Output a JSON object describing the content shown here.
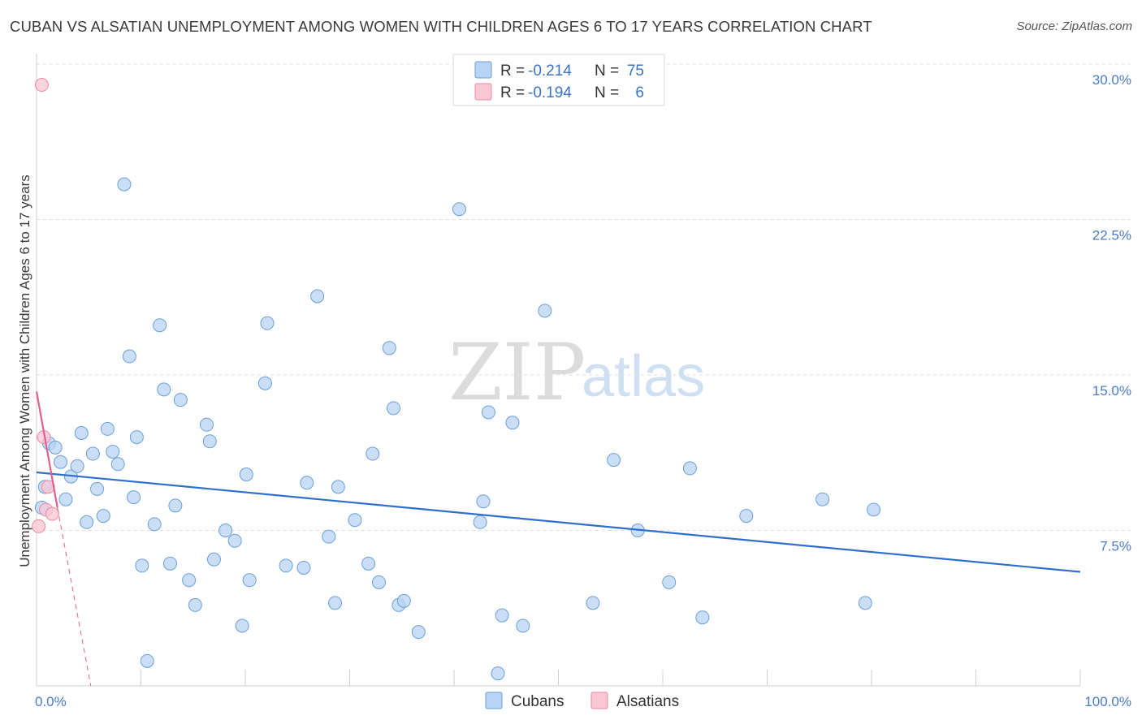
{
  "title": "CUBAN VS ALSATIAN UNEMPLOYMENT AMONG WOMEN WITH CHILDREN AGES 6 TO 17 YEARS CORRELATION CHART",
  "source": "Source: ZipAtlas.com",
  "watermark": {
    "zip": "ZIP",
    "atlas": "atlas"
  },
  "colors": {
    "cubans_fill": "#b8d3f3",
    "cubans_stroke": "#6b9fd8",
    "cubans_line": "#2e6fcc",
    "alsatians_fill": "#f9c6d4",
    "alsatians_stroke": "#e88aa6",
    "alsatians_line": "#e0608c",
    "tick_text": "#4a7cc4",
    "grid": "#dddddd"
  },
  "legend": {
    "rows": [
      {
        "r_label": "R =",
        "r_value": "-0.214",
        "n_label": "N =",
        "n_value": "75"
      },
      {
        "r_label": "R =",
        "r_value": "-0.194",
        "n_label": "N =",
        "n_value": "6"
      }
    ]
  },
  "bottom_legend": [
    "Cubans",
    "Alsatians"
  ],
  "chart_data": {
    "type": "scatter",
    "title": "CUBAN VS ALSATIAN UNEMPLOYMENT AMONG WOMEN WITH CHILDREN AGES 6 TO 17 YEARS CORRELATION CHART",
    "xlabel": "",
    "ylabel": "Unemployment Among Women with Children Ages 6 to 17 years",
    "xlim": [
      0,
      100
    ],
    "ylim": [
      0,
      30
    ],
    "y_ticks": [
      7.5,
      15.0,
      22.5,
      30.0
    ],
    "y_tick_labels": [
      "7.5%",
      "15.0%",
      "22.5%",
      "30.0%"
    ],
    "x_tick_labels": [
      "0.0%",
      "100.0%"
    ],
    "grid": "horizontal dashed",
    "legend_position": "top-center",
    "series": [
      {
        "name": "Cubans",
        "r": -0.214,
        "n": 75,
        "trend": {
          "x": [
            0,
            100
          ],
          "y": [
            10.3,
            5.5
          ]
        },
        "points": [
          [
            0.5,
            8.6
          ],
          [
            0.8,
            9.6
          ],
          [
            1.2,
            11.7
          ],
          [
            1.8,
            11.5
          ],
          [
            2.3,
            10.8
          ],
          [
            2.8,
            9.0
          ],
          [
            3.3,
            10.1
          ],
          [
            3.9,
            10.6
          ],
          [
            4.3,
            12.2
          ],
          [
            4.8,
            7.9
          ],
          [
            5.4,
            11.2
          ],
          [
            5.8,
            9.5
          ],
          [
            6.4,
            8.2
          ],
          [
            6.8,
            12.4
          ],
          [
            7.3,
            11.3
          ],
          [
            7.8,
            10.7
          ],
          [
            8.4,
            24.2
          ],
          [
            8.9,
            15.9
          ],
          [
            9.3,
            9.1
          ],
          [
            9.6,
            12.0
          ],
          [
            10.1,
            5.8
          ],
          [
            10.6,
            1.2
          ],
          [
            11.3,
            7.8
          ],
          [
            11.8,
            17.4
          ],
          [
            12.2,
            14.3
          ],
          [
            12.8,
            5.9
          ],
          [
            13.3,
            8.7
          ],
          [
            13.8,
            13.8
          ],
          [
            14.6,
            5.1
          ],
          [
            15.2,
            3.9
          ],
          [
            16.3,
            12.6
          ],
          [
            16.6,
            11.8
          ],
          [
            17.0,
            6.1
          ],
          [
            18.1,
            7.5
          ],
          [
            19.0,
            7.0
          ],
          [
            19.7,
            2.9
          ],
          [
            20.1,
            10.2
          ],
          [
            20.4,
            5.1
          ],
          [
            21.9,
            14.6
          ],
          [
            22.1,
            17.5
          ],
          [
            23.9,
            5.8
          ],
          [
            25.6,
            5.7
          ],
          [
            25.9,
            9.8
          ],
          [
            26.9,
            18.8
          ],
          [
            28.0,
            7.2
          ],
          [
            28.6,
            4.0
          ],
          [
            28.9,
            9.6
          ],
          [
            30.5,
            8.0
          ],
          [
            31.8,
            5.9
          ],
          [
            32.2,
            11.2
          ],
          [
            32.8,
            5.0
          ],
          [
            33.8,
            16.3
          ],
          [
            34.2,
            13.4
          ],
          [
            34.7,
            3.9
          ],
          [
            35.2,
            4.1
          ],
          [
            36.6,
            2.6
          ],
          [
            40.5,
            23.0
          ],
          [
            42.5,
            7.9
          ],
          [
            42.8,
            8.9
          ],
          [
            43.3,
            13.2
          ],
          [
            44.2,
            0.6
          ],
          [
            44.6,
            3.4
          ],
          [
            45.6,
            12.7
          ],
          [
            46.6,
            2.9
          ],
          [
            48.7,
            18.1
          ],
          [
            53.3,
            4.0
          ],
          [
            55.3,
            10.9
          ],
          [
            57.6,
            7.5
          ],
          [
            60.6,
            5.0
          ],
          [
            62.6,
            10.5
          ],
          [
            63.8,
            3.3
          ],
          [
            68.0,
            8.2
          ],
          [
            75.3,
            9.0
          ],
          [
            79.4,
            4.0
          ],
          [
            80.2,
            8.5
          ]
        ]
      },
      {
        "name": "Alsatians",
        "r": -0.194,
        "n": 6,
        "trend_solid": {
          "x": [
            0,
            2.0
          ],
          "y": [
            14.2,
            8.6
          ]
        },
        "trend_dashed": {
          "x": [
            2.0,
            5.2
          ],
          "y": [
            8.6,
            0
          ]
        },
        "points": [
          [
            0.5,
            29.0
          ],
          [
            0.7,
            12.0
          ],
          [
            0.9,
            8.5
          ],
          [
            1.1,
            9.6
          ],
          [
            1.5,
            8.3
          ],
          [
            0.2,
            7.7
          ]
        ]
      }
    ]
  }
}
